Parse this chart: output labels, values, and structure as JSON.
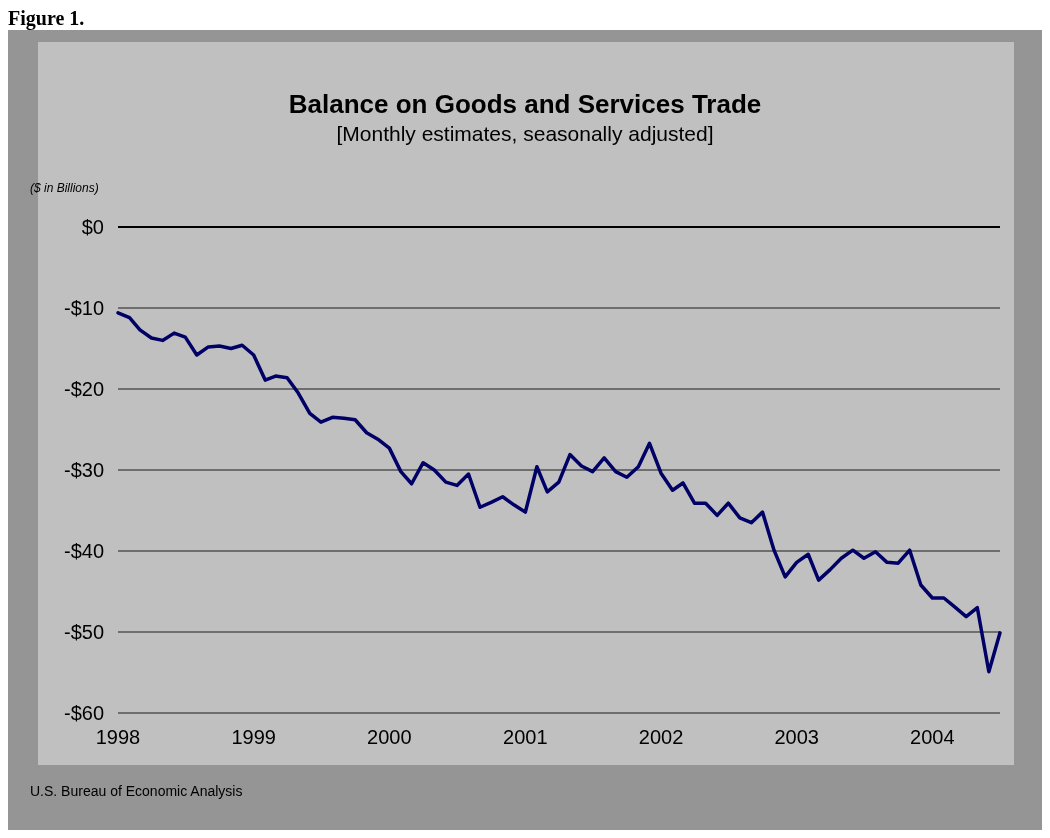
{
  "chart_data": {
    "type": "line",
    "title": "Balance on Goods and Services Trade",
    "subtitle": "[Monthly estimates, seasonally adjusted]",
    "ylabel": "($ in Billions)",
    "annotations": [
      "Figure 1.",
      "U.S. Bureau of Economic Analysis"
    ],
    "x": [
      "1998-01",
      "1998-02",
      "1998-03",
      "1998-04",
      "1998-05",
      "1998-06",
      "1998-07",
      "1998-08",
      "1998-09",
      "1998-10",
      "1998-11",
      "1998-12",
      "1999-01",
      "1999-02",
      "1999-03",
      "1999-04",
      "1999-05",
      "1999-06",
      "1999-07",
      "1999-08",
      "1999-09",
      "1999-10",
      "1999-11",
      "1999-12",
      "2000-01",
      "2000-02",
      "2000-03",
      "2000-04",
      "2000-05",
      "2000-06",
      "2000-07",
      "2000-08",
      "2000-09",
      "2000-10",
      "2000-11",
      "2000-12",
      "2001-01",
      "2001-02",
      "2001-03",
      "2001-04",
      "2001-05",
      "2001-06",
      "2001-07",
      "2001-08",
      "2001-09",
      "2001-10",
      "2001-11",
      "2001-12",
      "2002-01",
      "2002-02",
      "2002-03",
      "2002-04",
      "2002-05",
      "2002-06",
      "2002-07",
      "2002-08",
      "2002-09",
      "2002-10",
      "2002-11",
      "2002-12",
      "2003-01",
      "2003-02",
      "2003-03",
      "2003-04",
      "2003-05",
      "2003-06",
      "2003-07",
      "2003-08",
      "2003-09",
      "2003-10",
      "2003-11",
      "2003-12",
      "2004-01",
      "2004-02",
      "2004-03",
      "2004-04",
      "2004-05",
      "2004-06",
      "2004-07"
    ],
    "series": [
      {
        "color": "#000066",
        "values": [
          -10.6,
          -11.2,
          -12.7,
          -13.7,
          -14.0,
          -13.1,
          -13.6,
          -15.8,
          -14.8,
          -14.7,
          -15.0,
          -14.6,
          -15.8,
          -18.9,
          -18.4,
          -18.6,
          -20.5,
          -23.0,
          -24.1,
          -23.5,
          -23.6,
          -23.8,
          -25.4,
          -26.2,
          -27.3,
          -30.2,
          -31.7,
          -29.1,
          -30.0,
          -31.5,
          -31.9,
          -30.5,
          -34.6,
          -34.0,
          -33.3,
          -34.3,
          -35.2,
          -29.6,
          -32.7,
          -31.5,
          -28.1,
          -29.5,
          -30.2,
          -28.5,
          -30.2,
          -30.9,
          -29.6,
          -26.7,
          -30.4,
          -32.5,
          -31.6,
          -34.1,
          -34.1,
          -35.6,
          -34.1,
          -35.9,
          -36.5,
          -35.2,
          -39.9,
          -43.2,
          -41.4,
          -40.4,
          -43.6,
          -42.3,
          -40.9,
          -39.9,
          -40.9,
          -40.1,
          -41.4,
          -41.5,
          -39.9,
          -44.2,
          -45.8,
          -45.8,
          -46.9,
          -48.1,
          -47.0,
          -54.9,
          -50.1
        ]
      }
    ],
    "xlim": [
      "1998-01",
      "2004-07"
    ],
    "xticks": [
      {
        "value": "1998-01",
        "label": "1998"
      },
      {
        "value": "1999-01",
        "label": "1999"
      },
      {
        "value": "2000-01",
        "label": "2000"
      },
      {
        "value": "2001-01",
        "label": "2001"
      },
      {
        "value": "2002-01",
        "label": "2002"
      },
      {
        "value": "2003-01",
        "label": "2003"
      },
      {
        "value": "2004-01",
        "label": "2004"
      }
    ],
    "ylim": [
      -60,
      0
    ],
    "yticks": [
      {
        "value": -60,
        "label": "-$60"
      },
      {
        "value": -50,
        "label": "-$50"
      },
      {
        "value": -40,
        "label": "-$40"
      },
      {
        "value": -30,
        "label": "-$30"
      },
      {
        "value": -20,
        "label": "-$20"
      },
      {
        "value": -10,
        "label": "-$10"
      },
      {
        "value": 0,
        "label": "$0"
      }
    ],
    "ref_lines": [
      {
        "axis": "y",
        "value": 0,
        "color": "#000000",
        "line_style": "solid"
      }
    ],
    "grid": "y",
    "marker": "none",
    "line_style": "solid"
  }
}
